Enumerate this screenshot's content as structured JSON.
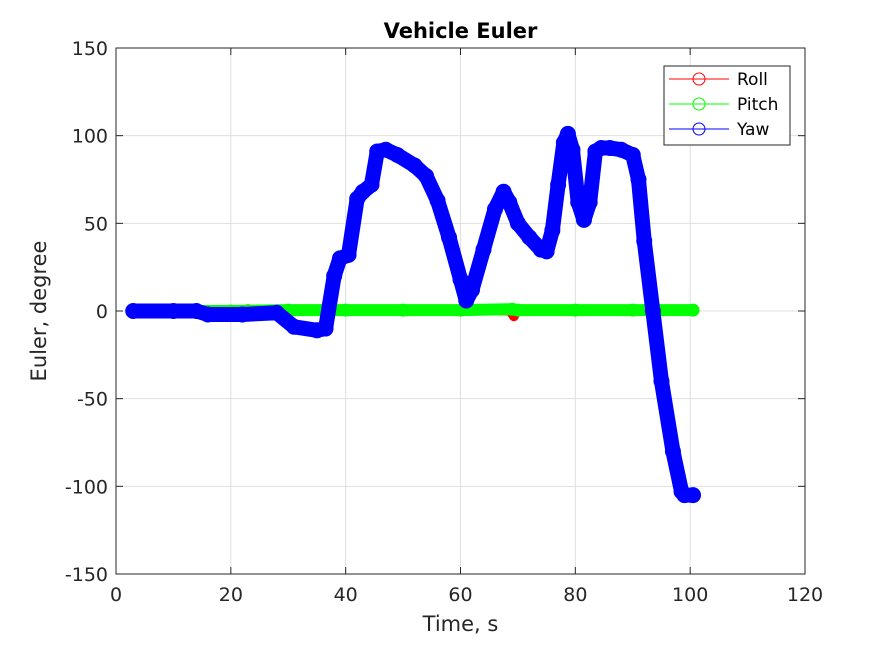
{
  "chart_data": {
    "type": "line",
    "title": "Vehicle Euler",
    "xlabel": "Time, s",
    "ylabel": "Euler, degree",
    "xlim": [
      0,
      120
    ],
    "ylim": [
      -150,
      150
    ],
    "xticks": [
      "0",
      "20",
      "40",
      "60",
      "80",
      "100",
      "120"
    ],
    "yticks": [
      "150",
      "100",
      "50",
      "0",
      "-50",
      "-100",
      "-150"
    ],
    "grid": true,
    "legend_position": "top-right",
    "series": [
      {
        "name": "Roll",
        "color": "#ff0000",
        "marker": "circle",
        "x": [
          3,
          10,
          20,
          23,
          25,
          30,
          40,
          50,
          60,
          68.5,
          69.3,
          70,
          80,
          90,
          100.5
        ],
        "y": [
          0,
          0,
          0.5,
          1,
          0.5,
          0,
          0,
          0,
          0,
          0,
          -3,
          0,
          0,
          0,
          0
        ]
      },
      {
        "name": "Pitch",
        "color": "#00ff00",
        "marker": "circle",
        "x": [
          3,
          10,
          20,
          30,
          40,
          50,
          60,
          69,
          70,
          80,
          90,
          100.5
        ],
        "y": [
          0,
          0,
          0,
          0.5,
          0.5,
          0.5,
          0.5,
          1,
          0.5,
          0.5,
          0.5,
          0.5
        ]
      },
      {
        "name": "Yaw",
        "color": "#0000ff",
        "marker": "circle",
        "x": [
          3,
          10,
          14,
          16,
          22,
          28,
          31,
          35,
          36.5,
          38,
          39,
          40.5,
          42,
          43,
          44.5,
          45.5,
          47,
          49,
          52,
          54,
          56,
          58,
          60,
          61,
          62,
          64,
          66,
          67.5,
          68.5,
          70,
          72,
          74,
          75,
          76,
          77,
          78,
          78.7,
          79.5,
          80.5,
          81.5,
          82.5,
          83.5,
          84.5,
          86,
          88,
          90,
          91,
          92,
          93.5,
          95,
          97,
          98.5,
          99,
          100.5
        ],
        "y": [
          0,
          0,
          0,
          -2,
          -2,
          -1,
          -9,
          -11,
          -10,
          20,
          30,
          32,
          64,
          68,
          72,
          91,
          92,
          89,
          83,
          77,
          63,
          42,
          18,
          6,
          12,
          35,
          58,
          68,
          62,
          50,
          42,
          35,
          34,
          46,
          72,
          96,
          101,
          92,
          62,
          52,
          62,
          91,
          93,
          93,
          92,
          89,
          75,
          40,
          0,
          -40,
          -80,
          -103,
          -105,
          -105
        ]
      }
    ]
  }
}
